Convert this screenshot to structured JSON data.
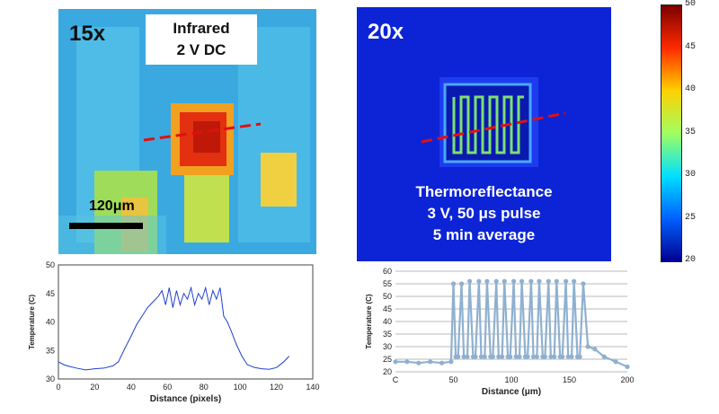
{
  "ir_panel": {
    "magnification": "15x",
    "label_line1": "Infrared",
    "label_line2": "2 V DC",
    "scale_bar": "120μm"
  },
  "tr_panel": {
    "magnification": "20x",
    "line1": "Thermoreflectance",
    "line2": "3 V, 50 μs pulse",
    "line3": "5 min average"
  },
  "colorbar": {
    "ticks": [
      "50",
      "45",
      "40",
      "35",
      "30",
      "25",
      "20"
    ],
    "colors": [
      "#7a0000",
      "#ff2a00",
      "#ffd000",
      "#a0ff60",
      "#00e0ff",
      "#0060ff",
      "#00008f"
    ]
  },
  "chart_data": [
    {
      "type": "line",
      "title": "",
      "xlabel": "Distance (pixels)",
      "ylabel": "Temperature (C)",
      "xlim": [
        0,
        140
      ],
      "ylim": [
        30,
        50
      ],
      "xticks": [
        "0",
        "20",
        "40",
        "60",
        "80",
        "100",
        "120",
        "140"
      ],
      "yticks": [
        "30",
        "35",
        "40",
        "45",
        "50"
      ],
      "color": "#1f3fd0",
      "x": [
        0,
        3,
        6,
        10,
        15,
        20,
        25,
        30,
        33,
        36,
        40,
        43,
        46,
        49,
        52,
        55,
        57,
        59,
        61,
        63,
        65,
        67,
        69,
        71,
        73,
        75,
        77,
        79,
        81,
        83,
        85,
        87,
        89,
        91,
        93,
        95,
        98,
        101,
        104,
        108,
        112,
        116,
        120,
        124,
        127
      ],
      "y": [
        33,
        32.5,
        32.2,
        31.9,
        31.6,
        31.8,
        31.9,
        32.3,
        33,
        35,
        37.5,
        39.5,
        41,
        42.5,
        43.5,
        44.5,
        45.5,
        43,
        46,
        42.5,
        45.5,
        43,
        45,
        44,
        46,
        43,
        45,
        44,
        46,
        43,
        45.5,
        44,
        46,
        41,
        40,
        38.5,
        36,
        34,
        32.5,
        32,
        31.8,
        31.7,
        32,
        33,
        34
      ]
    },
    {
      "type": "line",
      "title": "",
      "xlabel": "Distance (μm)",
      "ylabel": "Temperature (C)",
      "xlim": [
        0,
        200
      ],
      "ylim": [
        20,
        60
      ],
      "xticks": [
        "C",
        "50",
        "100",
        "150",
        "200"
      ],
      "yticks": [
        "20",
        "25",
        "30",
        "35",
        "40",
        "45",
        "50",
        "55",
        "60"
      ],
      "color": "#8fb0d0",
      "x": [
        0,
        10,
        20,
        30,
        40,
        48,
        50,
        52,
        54,
        57,
        59,
        62,
        64,
        67,
        69,
        72,
        74,
        77,
        79,
        82,
        84,
        87,
        89,
        92,
        94,
        97,
        99,
        102,
        104,
        107,
        109,
        112,
        114,
        117,
        119,
        122,
        124,
        127,
        129,
        132,
        134,
        137,
        139,
        142,
        144,
        147,
        149,
        152,
        154,
        157,
        159,
        162,
        166,
        172,
        180,
        190,
        200
      ],
      "y": [
        24,
        24,
        23.5,
        24,
        23.5,
        24,
        55,
        26,
        26,
        55,
        26,
        26,
        56,
        26,
        26,
        56,
        26,
        26,
        56,
        26,
        26,
        56,
        26,
        26,
        56,
        26,
        26,
        56,
        26,
        26,
        56,
        26,
        26,
        56,
        26,
        26,
        56,
        26,
        26,
        56,
        26,
        26,
        56,
        26,
        26,
        56,
        26,
        26,
        56,
        26,
        26,
        55,
        30,
        29,
        26,
        24,
        22
      ]
    }
  ]
}
